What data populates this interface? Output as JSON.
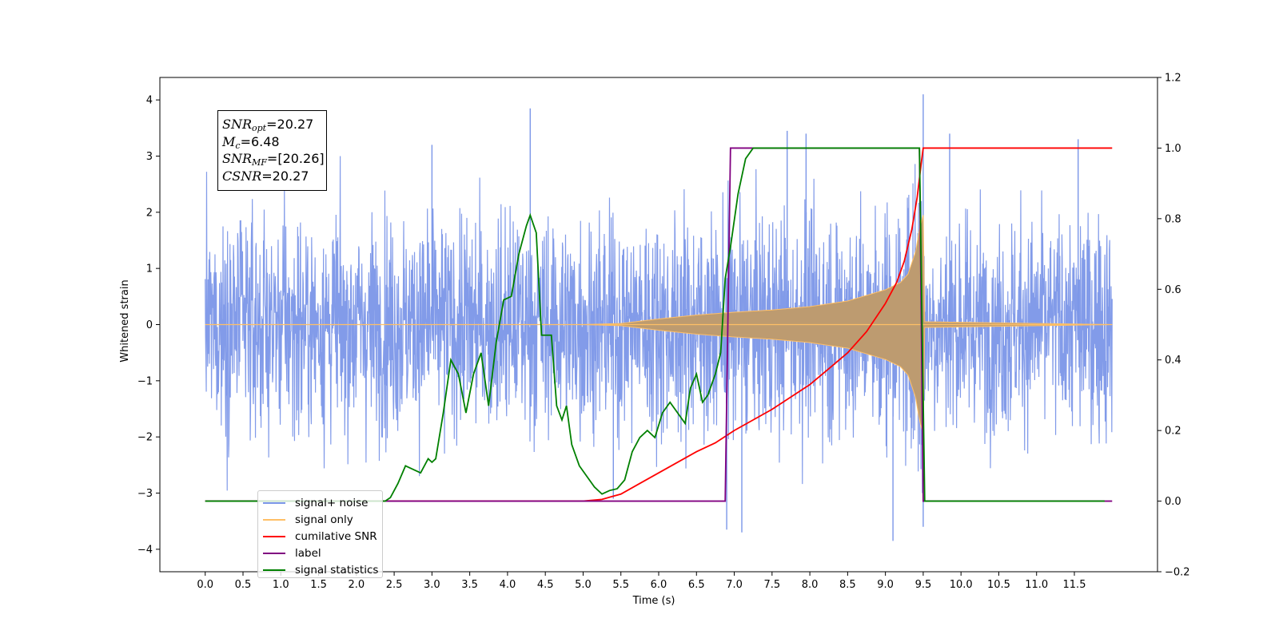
{
  "chart_data": {
    "type": "line",
    "xlabel": "Time (s)",
    "ylabel": "Whitened strain",
    "xlim": [
      -0.6,
      12.6
    ],
    "ylim": [
      -4.4,
      4.4
    ],
    "y2lim": [
      -0.2,
      1.2
    ],
    "x_ticks": [
      "0.0",
      "0.5",
      "1.0",
      "1.5",
      "2.0",
      "2.5",
      "3.0",
      "3.5",
      "4.0",
      "4.5",
      "5.0",
      "5.5",
      "6.0",
      "6.5",
      "7.0",
      "7.5",
      "8.0",
      "8.5",
      "9.0",
      "9.5",
      "10.0",
      "10.5",
      "11.0",
      "11.5"
    ],
    "y_ticks": [
      "4",
      "3",
      "2",
      "1",
      "0",
      "−1",
      "−2",
      "−3",
      "−4"
    ],
    "y2_ticks": [
      "1.2",
      "1.0",
      "0.8",
      "0.6",
      "0.4",
      "0.2",
      "0.0",
      "−0.2"
    ],
    "annotation": {
      "snr_opt": {
        "name": "SNR",
        "sub": "opt",
        "value": "=20.27"
      },
      "chirp_mass": {
        "name": "M",
        "sub": "c",
        "value": "=6.48"
      },
      "snr_mf": {
        "name": "SNR",
        "sub": "MF",
        "value": "=[20.26]"
      },
      "csnr": {
        "name": "CSNR",
        "value": "=20.27"
      }
    },
    "legend": [
      {
        "label": "signal+ noise",
        "color": "#7b96e8"
      },
      {
        "label": "signal only",
        "color": "#ffbf66"
      },
      {
        "label": "cumilative SNR",
        "color": "#ff0000"
      },
      {
        "label": "label",
        "color": "#800080"
      },
      {
        "label": "signal statistics",
        "color": "#008000"
      }
    ],
    "series": [
      {
        "name": "signal+ noise",
        "axis": "left",
        "color": "#7b96e8",
        "x_range": [
          0.0,
          12.0
        ],
        "typical_band": [
          -2.1,
          2.4
        ],
        "peaks": [
          {
            "x": 4.3,
            "y": 3.85
          },
          {
            "x": 9.5,
            "y": 4.1
          },
          {
            "x": 9.1,
            "y": -3.85
          },
          {
            "x": 7.1,
            "y": -3.7
          },
          {
            "x": 6.9,
            "y": -3.65
          },
          {
            "x": 9.5,
            "y": -3.6
          },
          {
            "x": 7.7,
            "y": 3.45
          },
          {
            "x": 7.95,
            "y": 3.4
          },
          {
            "x": 9.85,
            "y": 3.4
          },
          {
            "x": 11.55,
            "y": 3.3
          },
          {
            "x": 5.4,
            "y": -3.1
          },
          {
            "x": 3.0,
            "y": 3.2
          }
        ]
      },
      {
        "name": "signal only",
        "axis": "left",
        "color": "#ffbf66",
        "points": [
          [
            0.0,
            0.0
          ],
          [
            5.0,
            0.0
          ],
          [
            5.5,
            0.02
          ],
          [
            6.0,
            0.1
          ],
          [
            6.5,
            0.17
          ],
          [
            7.0,
            0.22
          ],
          [
            7.5,
            0.26
          ],
          [
            8.0,
            0.32
          ],
          [
            8.5,
            0.42
          ],
          [
            9.0,
            0.62
          ],
          [
            9.2,
            0.75
          ],
          [
            9.3,
            0.9
          ],
          [
            9.4,
            1.3
          ],
          [
            9.45,
            1.7
          ],
          [
            9.5,
            1.95
          ],
          [
            9.52,
            0.05
          ],
          [
            12.0,
            0.0
          ]
        ]
      },
      {
        "name": "cumilative SNR",
        "axis": "right",
        "color": "#ff0000",
        "points": [
          [
            0.0,
            0.0
          ],
          [
            5.0,
            0.0
          ],
          [
            5.25,
            0.005
          ],
          [
            5.5,
            0.02
          ],
          [
            5.75,
            0.05
          ],
          [
            6.0,
            0.08
          ],
          [
            6.25,
            0.11
          ],
          [
            6.5,
            0.14
          ],
          [
            6.75,
            0.165
          ],
          [
            7.0,
            0.2
          ],
          [
            7.25,
            0.23
          ],
          [
            7.5,
            0.26
          ],
          [
            7.75,
            0.295
          ],
          [
            8.0,
            0.33
          ],
          [
            8.25,
            0.375
          ],
          [
            8.5,
            0.42
          ],
          [
            8.75,
            0.48
          ],
          [
            9.0,
            0.56
          ],
          [
            9.15,
            0.62
          ],
          [
            9.25,
            0.68
          ],
          [
            9.35,
            0.77
          ],
          [
            9.42,
            0.86
          ],
          [
            9.47,
            0.95
          ],
          [
            9.5,
            1.0
          ],
          [
            12.0,
            1.0
          ]
        ]
      },
      {
        "name": "label",
        "axis": "right",
        "color": "#800080",
        "points": [
          [
            0.0,
            0.0
          ],
          [
            6.88,
            0.0
          ],
          [
            6.95,
            1.0
          ],
          [
            9.45,
            1.0
          ],
          [
            9.5,
            0.0
          ],
          [
            12.0,
            0.0
          ]
        ]
      },
      {
        "name": "signal statistics",
        "axis": "right",
        "color": "#008000",
        "points": [
          [
            0.0,
            0.0
          ],
          [
            2.38,
            0.0
          ],
          [
            2.45,
            0.01
          ],
          [
            2.55,
            0.05
          ],
          [
            2.65,
            0.1
          ],
          [
            2.75,
            0.09
          ],
          [
            2.85,
            0.08
          ],
          [
            2.95,
            0.12
          ],
          [
            3.0,
            0.11
          ],
          [
            3.05,
            0.12
          ],
          [
            3.15,
            0.25
          ],
          [
            3.25,
            0.4
          ],
          [
            3.35,
            0.36
          ],
          [
            3.45,
            0.25
          ],
          [
            3.55,
            0.36
          ],
          [
            3.65,
            0.42
          ],
          [
            3.75,
            0.27
          ],
          [
            3.85,
            0.45
          ],
          [
            3.95,
            0.57
          ],
          [
            4.05,
            0.58
          ],
          [
            4.15,
            0.7
          ],
          [
            4.25,
            0.78
          ],
          [
            4.3,
            0.81
          ],
          [
            4.38,
            0.76
          ],
          [
            4.45,
            0.47
          ],
          [
            4.52,
            0.47
          ],
          [
            4.58,
            0.47
          ],
          [
            4.65,
            0.27
          ],
          [
            4.72,
            0.23
          ],
          [
            4.78,
            0.27
          ],
          [
            4.85,
            0.16
          ],
          [
            4.95,
            0.1
          ],
          [
            5.05,
            0.07
          ],
          [
            5.15,
            0.04
          ],
          [
            5.25,
            0.02
          ],
          [
            5.35,
            0.03
          ],
          [
            5.45,
            0.035
          ],
          [
            5.55,
            0.06
          ],
          [
            5.65,
            0.14
          ],
          [
            5.75,
            0.18
          ],
          [
            5.85,
            0.2
          ],
          [
            5.95,
            0.18
          ],
          [
            6.05,
            0.25
          ],
          [
            6.15,
            0.28
          ],
          [
            6.25,
            0.25
          ],
          [
            6.35,
            0.22
          ],
          [
            6.42,
            0.32
          ],
          [
            6.5,
            0.36
          ],
          [
            6.58,
            0.28
          ],
          [
            6.65,
            0.3
          ],
          [
            6.75,
            0.36
          ],
          [
            6.82,
            0.42
          ],
          [
            6.88,
            0.63
          ],
          [
            6.95,
            0.72
          ],
          [
            7.05,
            0.87
          ],
          [
            7.15,
            0.97
          ],
          [
            7.25,
            1.0
          ],
          [
            9.45,
            1.0
          ],
          [
            9.52,
            0.0
          ],
          [
            11.9,
            0.0
          ]
        ]
      }
    ]
  }
}
